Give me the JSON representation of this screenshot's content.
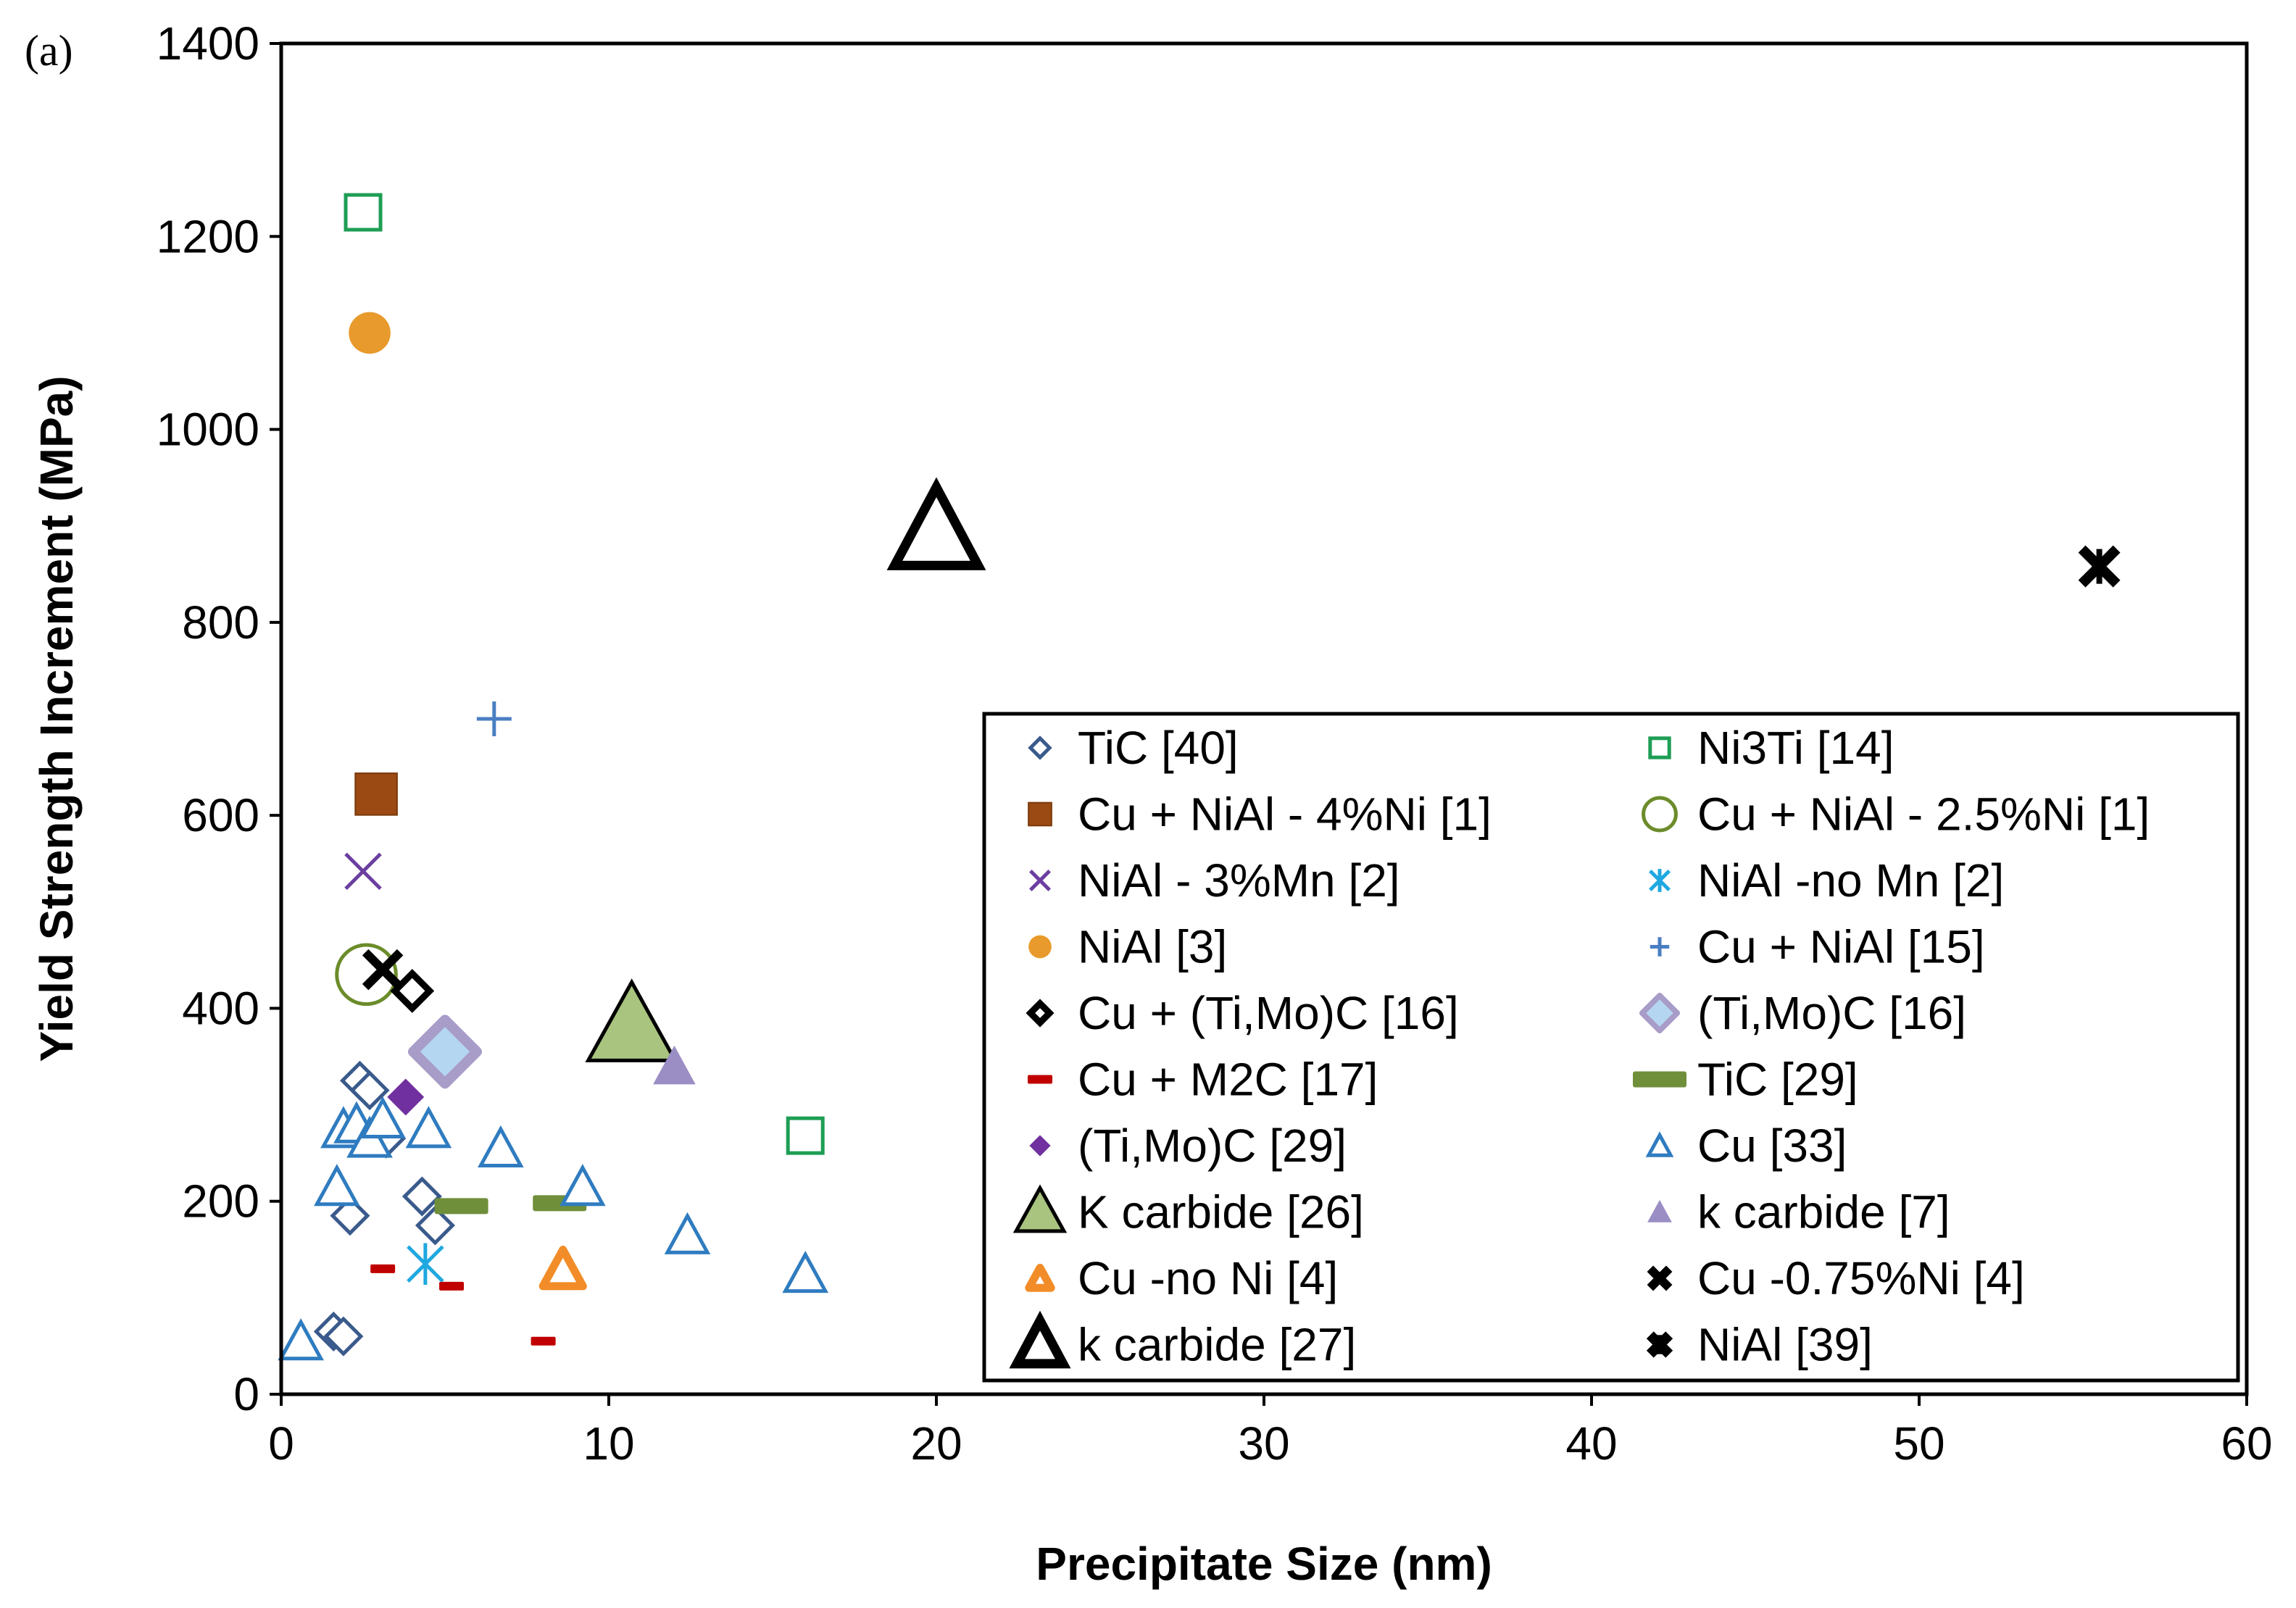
{
  "panel_label": "(a)",
  "chart_data": {
    "type": "scatter",
    "title": "",
    "xlabel": "Precipitate Size (nm)",
    "ylabel": "Yield Strength Increment (MPa)",
    "xlim": [
      0,
      60
    ],
    "ylim": [
      0,
      1400
    ],
    "xticks": [
      0,
      10,
      20,
      30,
      40,
      50,
      60
    ],
    "yticks": [
      0,
      200,
      400,
      600,
      800,
      1000,
      1200,
      1400
    ],
    "grid": false,
    "legend_position": "lower-right",
    "series": [
      {
        "name": "TiC [40]",
        "marker": "diamond-open",
        "color": "#3a5a8c",
        "x": [
          1.6,
          1.9,
          2.1,
          2.4,
          2.7,
          3.2,
          4.3,
          4.7
        ],
        "y": [
          65,
          60,
          185,
          325,
          315,
          265,
          205,
          175
        ]
      },
      {
        "name": "Ni3Ti [14]",
        "marker": "square-open",
        "color": "#1e9e55",
        "x": [
          2.5,
          16.0
        ],
        "y": [
          1225,
          268
        ]
      },
      {
        "name": "Cu + NiAl - 4%Ni [1]",
        "marker": "square",
        "color": "#9a4a12",
        "x": [
          2.9
        ],
        "y": [
          622
        ]
      },
      {
        "name": "Cu + NiAl - 2.5%Ni [1]",
        "marker": "circle-open",
        "color": "#6b8c2a",
        "x": [
          2.6
        ],
        "y": [
          435
        ]
      },
      {
        "name": "NiAl - 3%Mn [2]",
        "marker": "x",
        "color": "#6b3fa0",
        "x": [
          2.5
        ],
        "y": [
          542
        ]
      },
      {
        "name": "NiAl -no Mn [2]",
        "marker": "asterisk",
        "color": "#1fa8e0",
        "x": [
          4.4
        ],
        "y": [
          135
        ]
      },
      {
        "name": "NiAl [3]",
        "marker": "circle",
        "color": "#e89a2c",
        "x": [
          2.7
        ],
        "y": [
          1100
        ]
      },
      {
        "name": "Cu + NiAl [15]",
        "marker": "plus",
        "color": "#4a7ec2",
        "x": [
          6.5
        ],
        "y": [
          700
        ]
      },
      {
        "name": "Cu + (Ti,Mo)C [16]",
        "marker": "diamond-open-bold",
        "color": "#000000",
        "x": [
          4.0
        ],
        "y": [
          418
        ]
      },
      {
        "name": "(Ti,Mo)C [16]",
        "marker": "diamond-large",
        "color": "#a89cc8",
        "x": [
          5.0
        ],
        "y": [
          355
        ]
      },
      {
        "name": "Cu + M2C [17]",
        "marker": "dash",
        "color": "#c00000",
        "x": [
          3.1,
          5.2,
          8.0
        ],
        "y": [
          130,
          112,
          55
        ]
      },
      {
        "name": "TiC [29]",
        "marker": "thick-dash",
        "color": "#6f8f3a",
        "x": [
          5.5,
          8.5
        ],
        "y": [
          195,
          198
        ]
      },
      {
        "name": "(Ti,Mo)C [29]",
        "marker": "diamond",
        "color": "#7030a0",
        "x": [
          3.8
        ],
        "y": [
          308
        ]
      },
      {
        "name": "Cu [33]",
        "marker": "triangle-open",
        "color": "#2f7cc0",
        "x": [
          0.6,
          1.7,
          1.9,
          2.3,
          2.7,
          3.1,
          4.5,
          6.7,
          9.2,
          12.4,
          16.0
        ],
        "y": [
          55,
          215,
          275,
          280,
          265,
          285,
          275,
          255,
          215,
          165,
          125
        ]
      },
      {
        "name": "K carbide [26]",
        "marker": "triangle-large",
        "color": "#a9c47f",
        "x": [
          10.7
        ],
        "y": [
          382
        ]
      },
      {
        "name": "k carbide [7]",
        "marker": "triangle",
        "color": "#9b8ec4",
        "x": [
          12.0
        ],
        "y": [
          340
        ]
      },
      {
        "name": "Cu -no Ni [4]",
        "marker": "triangle-open-orange",
        "color": "#f28c28",
        "x": [
          8.6
        ],
        "y": [
          130
        ]
      },
      {
        "name": "Cu -0.75%Ni [4]",
        "marker": "x-bold",
        "color": "#000000",
        "x": [
          3.1
        ],
        "y": [
          440
        ]
      },
      {
        "name": "k carbide [27]",
        "marker": "triangle-open-large",
        "color": "#000000",
        "x": [
          20.0
        ],
        "y": [
          895
        ]
      },
      {
        "name": "NiAl [39]",
        "marker": "x-star",
        "color": "#000000",
        "x": [
          55.5
        ],
        "y": [
          858
        ]
      }
    ]
  }
}
